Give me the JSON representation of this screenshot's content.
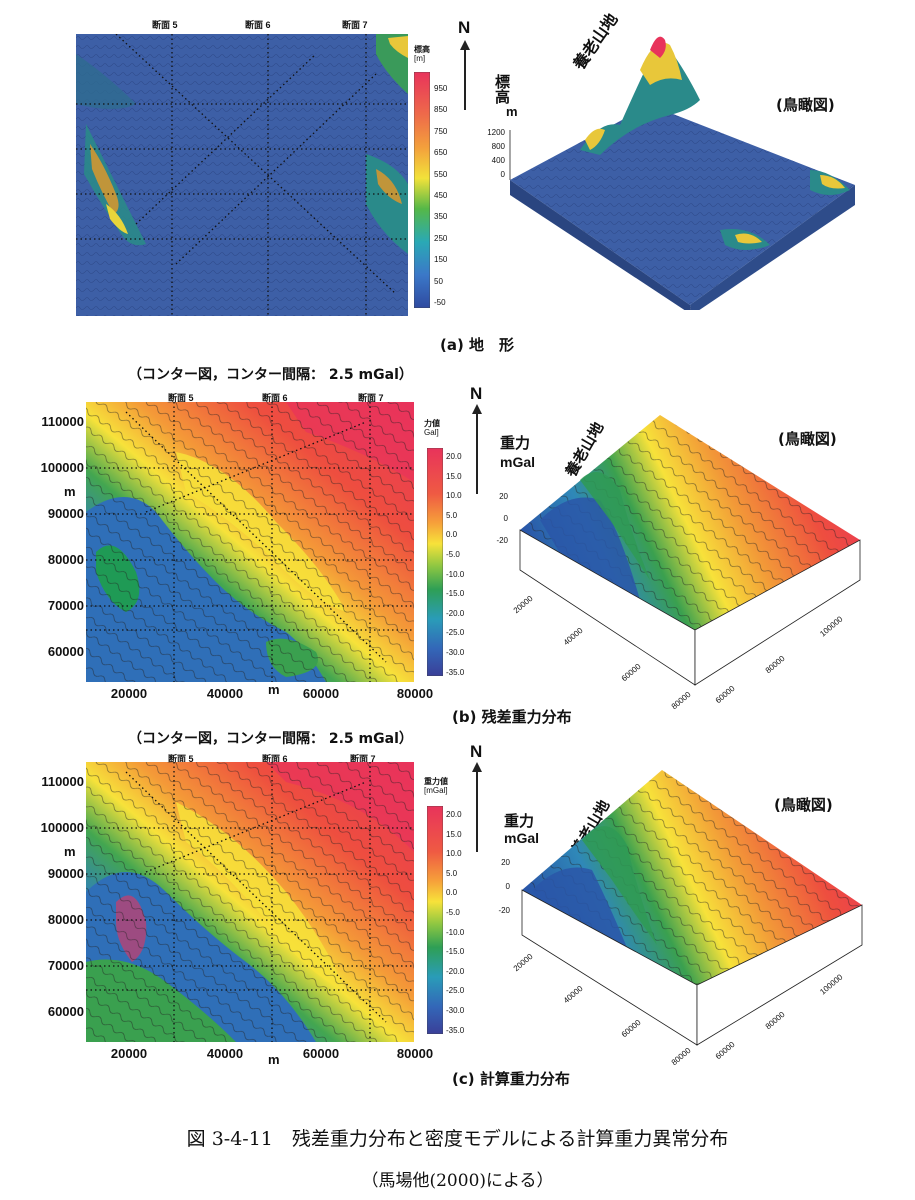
{
  "panel_a": {
    "section_labels": [
      "断面 5",
      "断面 6",
      "断面 7"
    ],
    "legend_title": "標高",
    "legend_unit": "[m]",
    "legend_values": [
      "950",
      "850",
      "750",
      "650",
      "550",
      "450",
      "350",
      "250",
      "150",
      "50",
      "-50"
    ],
    "caption": "(a) 地　形",
    "birdseye_label": "(鳥瞰図)",
    "north": "N",
    "z_axis_title": "標高",
    "z_axis_unit": "m",
    "z_ticks": [
      "1200",
      "800",
      "400",
      "0"
    ],
    "mountain_label": "養老山地"
  },
  "panel_b": {
    "header": "（コンター図，コンター間隔： 2.5 mGal）",
    "y_ticks": [
      "110000",
      "100000",
      "90000",
      "80000",
      "70000",
      "60000"
    ],
    "y_unit": "m",
    "x_ticks": [
      "20000",
      "40000",
      "60000",
      "80000"
    ],
    "x_unit": "m",
    "section_labels": [
      "断面 5",
      "断面 6",
      "断面 7"
    ],
    "legend_title": "力値",
    "legend_unit": "Gal]",
    "legend_values": [
      "20.0",
      "15.0",
      "10.0",
      "5.0",
      "0.0",
      "-5.0",
      "-10.0",
      "-15.0",
      "-20.0",
      "-25.0",
      "-30.0",
      "-35.0"
    ],
    "caption": "(b) 残差重力分布",
    "birdseye_label": "(鳥瞰図)",
    "north": "N",
    "z_axis_title": "重力",
    "z_axis_unit": "mGal",
    "z_ticks": [
      "20",
      "0",
      "-20"
    ],
    "mountain_label": "養老山地",
    "floor_ticks_left": [
      "20000",
      "40000",
      "60000",
      "80000"
    ],
    "floor_ticks_right": [
      "60000",
      "80000",
      "100000"
    ]
  },
  "panel_c": {
    "header": "（コンター図，コンター間隔： 2.5 mGal）",
    "y_ticks": [
      "110000",
      "100000",
      "90000",
      "80000",
      "70000",
      "60000"
    ],
    "y_unit": "m",
    "x_ticks": [
      "20000",
      "40000",
      "60000",
      "80000"
    ],
    "x_unit": "m",
    "section_labels": [
      "断面 5",
      "断面 6",
      "断面 7"
    ],
    "legend_title": "重力値",
    "legend_unit": "[mGal]",
    "legend_values": [
      "20.0",
      "15.0",
      "10.0",
      "5.0",
      "0.0",
      "-5.0",
      "-10.0",
      "-15.0",
      "-20.0",
      "-25.0",
      "-30.0",
      "-35.0"
    ],
    "caption": "(c) 計算重力分布",
    "birdseye_label": "(鳥瞰図)",
    "north": "N",
    "z_axis_title": "重力",
    "z_axis_unit": "mGal",
    "z_ticks": [
      "20",
      "0",
      "-20"
    ],
    "mountain_label": "養老山地",
    "floor_ticks_left": [
      "20000",
      "40000",
      "60000",
      "80000"
    ],
    "floor_ticks_right": [
      "60000",
      "80000",
      "100000"
    ]
  },
  "figure_caption": "図 3-4-11　残差重力分布と密度モデルによる計算重力異常分布",
  "figure_source": "（馬場他(2000)による）",
  "colors": {
    "terrain_low": "#3d5fa6",
    "gravity_high": "#e8333b",
    "gravity_mid": "#f7e23a",
    "gravity_low": "#2f5fb0"
  }
}
